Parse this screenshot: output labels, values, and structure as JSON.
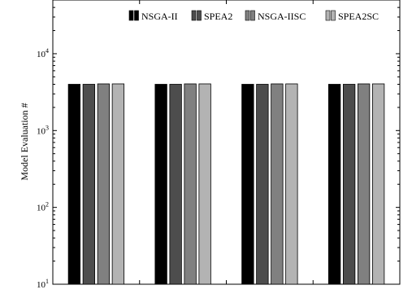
{
  "chart_data": {
    "type": "bar",
    "ylabel": "Model Evaluation #",
    "xlabel": "",
    "title": "",
    "yscale": "log",
    "ylim": [
      10,
      50000
    ],
    "yticks": [
      {
        "value": 10,
        "base": "10",
        "exp": "1"
      },
      {
        "value": 100,
        "base": "10",
        "exp": "2"
      },
      {
        "value": 1000,
        "base": "10",
        "exp": "3"
      },
      {
        "value": 10000,
        "base": "10",
        "exp": "4"
      }
    ],
    "categories": [
      "",
      "",
      "",
      ""
    ],
    "legend_position": "top-right",
    "grid": false,
    "series": [
      {
        "name": "NSGA-II",
        "color": "#000000",
        "values": [
          4000,
          4000,
          4000,
          4000
        ]
      },
      {
        "name": "SPEA2",
        "color": "#4d4d4d",
        "values": [
          4000,
          4000,
          4000,
          4000
        ]
      },
      {
        "name": "NSGA-IISC",
        "color": "#808080",
        "values": [
          4050,
          4050,
          4050,
          4050
        ]
      },
      {
        "name": "SPEA2SC",
        "color": "#b3b3b3",
        "values": [
          4050,
          4050,
          4050,
          4050
        ]
      }
    ]
  }
}
